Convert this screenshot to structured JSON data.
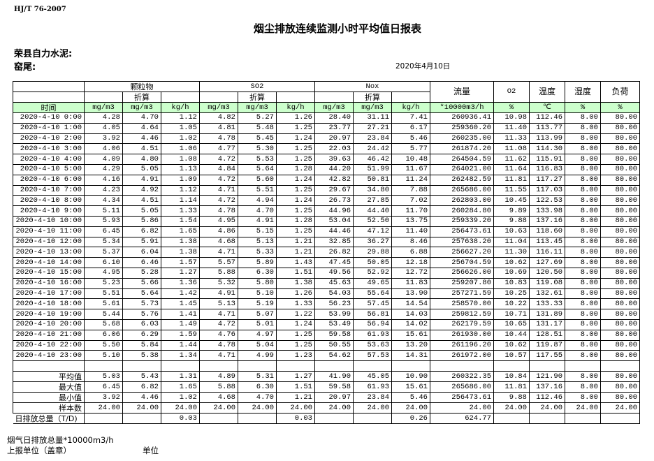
{
  "standard": "HJ/T  76-2007",
  "title": "烟尘排放连续监测小时平均值日报表",
  "company": "荣县自力水泥:",
  "location": "窑尾:",
  "date": "2020年4月10日",
  "header": {
    "groups": [
      "颗粒物",
      "SO2",
      "Nox"
    ],
    "converted": "折算",
    "flow": "流量",
    "o2": "O2",
    "temp": "温度",
    "humidity": "湿度",
    "load": "负荷",
    "time": "时间",
    "units": [
      "mg/m3",
      "mg/m3",
      "kg/h",
      "mg/m3",
      "mg/m3",
      "kg/h",
      "mg/m3",
      "mg/m3",
      "kg/h",
      "*10000m3/h",
      "%",
      "℃",
      "%",
      "%"
    ]
  },
  "rows": [
    [
      "2020-4-10 0:00",
      "4.28",
      "4.70",
      "1.12",
      "4.82",
      "5.27",
      "1.26",
      "28.40",
      "31.11",
      "7.41",
      "260936.41",
      "10.98",
      "112.46",
      "8.00",
      "80.00"
    ],
    [
      "2020-4-10 1:00",
      "4.05",
      "4.64",
      "1.05",
      "4.81",
      "5.48",
      "1.25",
      "23.77",
      "27.21",
      "6.17",
      "259360.20",
      "11.40",
      "113.77",
      "8.00",
      "80.00"
    ],
    [
      "2020-4-10 2:00",
      "3.92",
      "4.46",
      "1.02",
      "4.78",
      "5.45",
      "1.24",
      "20.97",
      "23.84",
      "5.46",
      "260235.00",
      "11.33",
      "113.99",
      "8.00",
      "80.00"
    ],
    [
      "2020-4-10 3:00",
      "4.06",
      "4.51",
      "1.06",
      "4.77",
      "5.30",
      "1.25",
      "22.03",
      "24.42",
      "5.77",
      "261874.20",
      "11.08",
      "114.30",
      "8.00",
      "80.00"
    ],
    [
      "2020-4-10 4:00",
      "4.09",
      "4.80",
      "1.08",
      "4.72",
      "5.53",
      "1.25",
      "39.63",
      "46.42",
      "10.48",
      "264504.59",
      "11.62",
      "115.91",
      "8.00",
      "80.00"
    ],
    [
      "2020-4-10 5:00",
      "4.29",
      "5.05",
      "1.13",
      "4.84",
      "5.64",
      "1.28",
      "44.20",
      "51.99",
      "11.67",
      "264021.00",
      "11.64",
      "116.83",
      "8.00",
      "80.00"
    ],
    [
      "2020-4-10 6:00",
      "4.16",
      "4.91",
      "1.09",
      "4.72",
      "5.60",
      "1.24",
      "42.82",
      "50.81",
      "11.24",
      "262482.59",
      "11.81",
      "117.27",
      "8.00",
      "80.00"
    ],
    [
      "2020-4-10 7:00",
      "4.23",
      "4.92",
      "1.12",
      "4.71",
      "5.51",
      "1.25",
      "29.67",
      "34.80",
      "7.88",
      "265686.00",
      "11.55",
      "117.03",
      "8.00",
      "80.00"
    ],
    [
      "2020-4-10 8:00",
      "4.34",
      "4.51",
      "1.14",
      "4.72",
      "4.94",
      "1.24",
      "26.73",
      "27.85",
      "7.02",
      "262803.00",
      "10.45",
      "122.53",
      "8.00",
      "80.00"
    ],
    [
      "2020-4-10 9:00",
      "5.11",
      "5.05",
      "1.33",
      "4.78",
      "4.70",
      "1.25",
      "44.96",
      "44.40",
      "11.70",
      "260284.80",
      "9.89",
      "133.98",
      "8.00",
      "80.00"
    ],
    [
      "2020-4-10 10:00",
      "5.93",
      "5.86",
      "1.54",
      "4.95",
      "4.91",
      "1.28",
      "53.04",
      "52.50",
      "13.75",
      "259339.20",
      "9.88",
      "137.16",
      "8.00",
      "80.00"
    ],
    [
      "2020-4-10 11:00",
      "6.45",
      "6.82",
      "1.65",
      "4.86",
      "5.15",
      "1.25",
      "44.46",
      "47.12",
      "11.40",
      "256473.61",
      "10.63",
      "118.60",
      "8.00",
      "80.00"
    ],
    [
      "2020-4-10 12:00",
      "5.34",
      "5.91",
      "1.38",
      "4.68",
      "5.13",
      "1.21",
      "32.85",
      "36.27",
      "8.46",
      "257638.20",
      "11.04",
      "113.45",
      "8.00",
      "80.00"
    ],
    [
      "2020-4-10 13:00",
      "5.37",
      "6.04",
      "1.38",
      "4.71",
      "5.33",
      "1.21",
      "26.82",
      "29.88",
      "6.88",
      "256627.20",
      "11.30",
      "116.11",
      "8.00",
      "80.00"
    ],
    [
      "2020-4-10 14:00",
      "6.10",
      "6.46",
      "1.57",
      "5.57",
      "5.89",
      "1.43",
      "47.45",
      "50.05",
      "12.18",
      "256704.59",
      "10.62",
      "127.69",
      "8.00",
      "80.00"
    ],
    [
      "2020-4-10 15:00",
      "4.95",
      "5.28",
      "1.27",
      "5.88",
      "6.30",
      "1.51",
      "49.56",
      "52.92",
      "12.72",
      "256626.00",
      "10.69",
      "120.50",
      "8.00",
      "80.00"
    ],
    [
      "2020-4-10 16:00",
      "5.23",
      "5.66",
      "1.36",
      "5.32",
      "5.80",
      "1.38",
      "45.63",
      "49.65",
      "11.83",
      "259207.80",
      "10.83",
      "119.08",
      "8.00",
      "80.00"
    ],
    [
      "2020-4-10 17:00",
      "5.51",
      "5.64",
      "1.42",
      "4.91",
      "5.10",
      "1.26",
      "54.03",
      "55.64",
      "13.90",
      "257271.59",
      "10.25",
      "132.61",
      "8.00",
      "80.00"
    ],
    [
      "2020-4-10 18:00",
      "5.61",
      "5.73",
      "1.45",
      "5.13",
      "5.19",
      "1.33",
      "56.23",
      "57.45",
      "14.54",
      "258570.00",
      "10.22",
      "133.33",
      "8.00",
      "80.00"
    ],
    [
      "2020-4-10 19:00",
      "5.44",
      "5.76",
      "1.41",
      "4.71",
      "5.07",
      "1.22",
      "53.99",
      "56.81",
      "14.03",
      "259812.59",
      "10.71",
      "131.89",
      "8.00",
      "80.00"
    ],
    [
      "2020-4-10 20:00",
      "5.68",
      "6.03",
      "1.49",
      "4.72",
      "5.01",
      "1.24",
      "53.49",
      "56.94",
      "14.02",
      "262179.59",
      "10.65",
      "131.17",
      "8.00",
      "80.00"
    ],
    [
      "2020-4-10 21:00",
      "6.06",
      "6.29",
      "1.59",
      "4.76",
      "4.97",
      "1.25",
      "59.58",
      "61.93",
      "15.61",
      "261930.00",
      "10.44",
      "128.51",
      "8.00",
      "80.00"
    ],
    [
      "2020-4-10 22:00",
      "5.50",
      "5.84",
      "1.44",
      "4.78",
      "5.04",
      "1.25",
      "50.55",
      "53.63",
      "13.20",
      "261196.20",
      "10.62",
      "119.87",
      "8.00",
      "80.00"
    ],
    [
      "2020-4-10 23:00",
      "5.10",
      "5.38",
      "1.34",
      "4.71",
      "4.99",
      "1.23",
      "54.62",
      "57.53",
      "14.31",
      "261972.00",
      "10.57",
      "117.55",
      "8.00",
      "80.00"
    ]
  ],
  "summary": [
    [
      "平均值",
      "5.03",
      "5.43",
      "1.31",
      "4.89",
      "5.31",
      "1.27",
      "41.90",
      "45.05",
      "10.90",
      "260322.35",
      "10.84",
      "121.90",
      "8.00",
      "80.00"
    ],
    [
      "最大值",
      "6.45",
      "6.82",
      "1.65",
      "5.88",
      "6.30",
      "1.51",
      "59.58",
      "61.93",
      "15.61",
      "265686.00",
      "11.81",
      "137.16",
      "8.00",
      "80.00"
    ],
    [
      "最小值",
      "3.92",
      "4.46",
      "1.02",
      "4.68",
      "4.70",
      "1.21",
      "20.97",
      "23.84",
      "5.46",
      "256473.61",
      "9.88",
      "112.46",
      "8.00",
      "80.00"
    ],
    [
      "样本数",
      "24.00",
      "24.00",
      "24.00",
      "24.00",
      "24.00",
      "24.00",
      "24.00",
      "24.00",
      "24.00",
      "24.00",
      "24.00",
      "24.00",
      "24.00",
      "24.00"
    ]
  ],
  "daily_total": [
    "日排放总量（T/D)",
    "",
    "",
    "0.03",
    "",
    "",
    "0.03",
    "",
    "",
    "0.26",
    "624.77",
    "",
    "",
    "",
    ""
  ],
  "footer": {
    "flue_total": "烟气日排放总量*10000m3/h",
    "reporter": "上报单位（盖章）",
    "unit": "单位"
  }
}
